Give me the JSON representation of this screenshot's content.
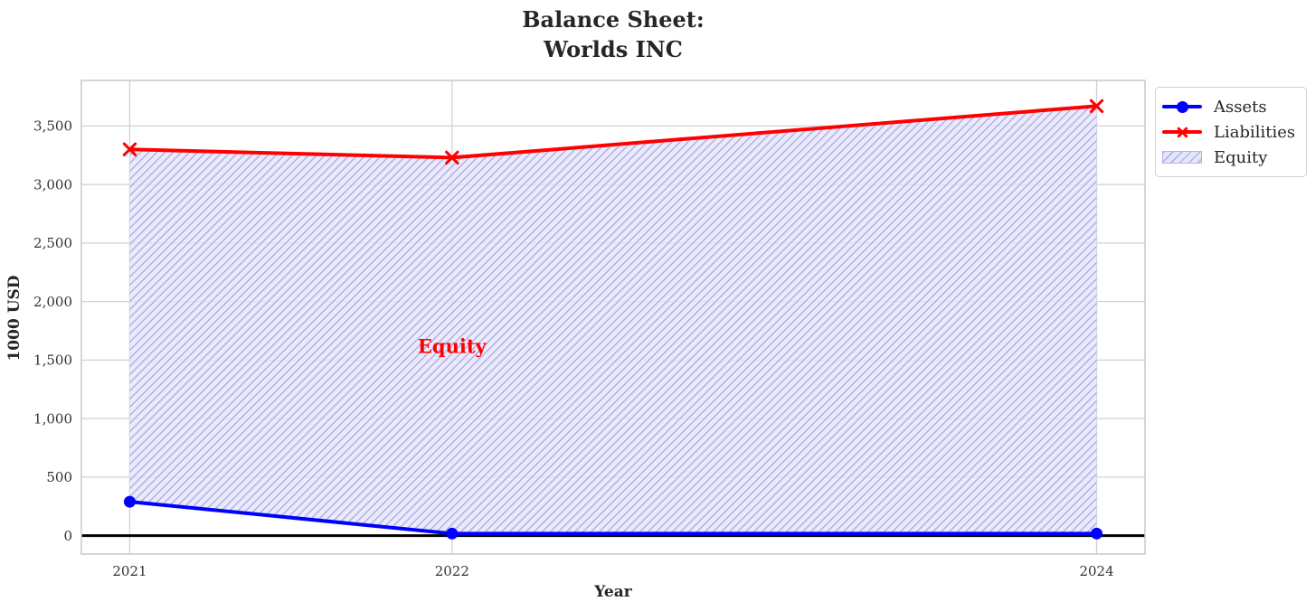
{
  "title": {
    "line1": "Balance Sheet:",
    "line2": "Worlds INC"
  },
  "colors": {
    "assets": "#0000ff",
    "liabilities": "#ff0000",
    "equity_fill": "#e6e6fa",
    "equity_hatch": "#b4b4ea",
    "grid": "#d2d2d2",
    "axis_border": "#c8c8c8",
    "zero_line": "#000000",
    "text": "#262626",
    "tick_text": "#333333",
    "annotation": "#ff0000",
    "background": "#ffffff"
  },
  "legend": {
    "position": "outside-top-right",
    "items": [
      {
        "label": "Assets",
        "type": "line-circle",
        "color": "#0000ff"
      },
      {
        "label": "Liabilities",
        "type": "line-x",
        "color": "#ff0000"
      },
      {
        "label": "Equity",
        "type": "hatch-patch",
        "fill": "#e6e6fa",
        "hatch": "#b4b4ea"
      }
    ]
  },
  "chart_data": {
    "type": "line",
    "title": "Balance Sheet:\nWorlds INC",
    "title_lines": [
      "Balance Sheet:",
      "Worlds INC"
    ],
    "xlabel": "Year",
    "ylabel": "1000 USD",
    "x": [
      2021,
      2022,
      2024
    ],
    "series": [
      {
        "name": "Assets",
        "values": [
          290,
          18,
          18
        ],
        "color": "#0000ff",
        "marker": "circle",
        "line_width": 4
      },
      {
        "name": "Liabilities",
        "values": [
          3300,
          3230,
          3670
        ],
        "color": "#ff0000",
        "marker": "x",
        "line_width": 4
      }
    ],
    "area": {
      "name": "Equity",
      "between": [
        "Assets",
        "Liabilities"
      ],
      "fill": "#e6e6fa",
      "hatch": "//"
    },
    "annotation": {
      "text": "Equity",
      "x": 2022,
      "y": 1620,
      "color": "#ff0000"
    },
    "x_ticks": [
      2021,
      2022,
      2024
    ],
    "y_ticks": [
      0,
      500,
      1000,
      1500,
      2000,
      2500,
      3000,
      3500
    ],
    "xlim": [
      2020.85,
      2024.15
    ],
    "ylim": [
      -157,
      3889
    ],
    "grid": true,
    "zero_line": 0,
    "legend_position": "outside-top-right"
  }
}
